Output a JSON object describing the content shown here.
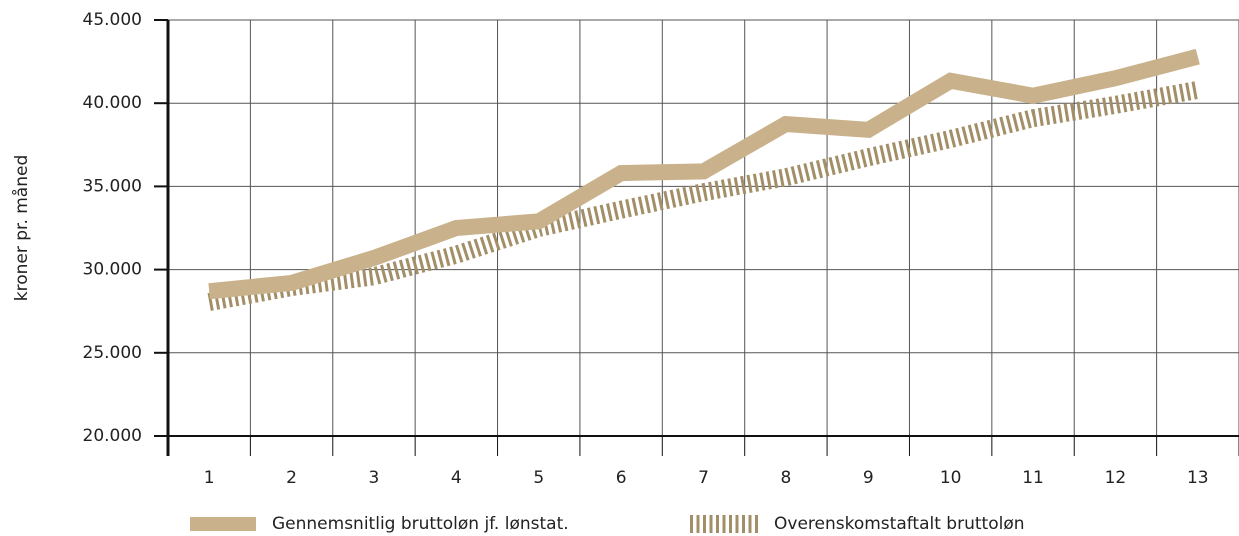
{
  "chart_data": {
    "type": "line",
    "ylabel": "kroner pr. måned",
    "categories": [
      "1",
      "2",
      "3",
      "4",
      "5",
      "6",
      "7",
      "8",
      "9",
      "10",
      "11",
      "12",
      "13"
    ],
    "series": [
      {
        "name": "Gennemsnitlig bruttoløn jf. lønstat.",
        "color": "#c9b28b",
        "style": "solid",
        "values": [
          28700,
          29200,
          30700,
          32500,
          32900,
          35800,
          35900,
          38750,
          38400,
          41350,
          40450,
          41500,
          42800
        ]
      },
      {
        "name": "Overenskomstaftalt bruttoløn",
        "color": "#a38f67",
        "style": "striped",
        "values": [
          28050,
          28950,
          29600,
          30900,
          32500,
          33600,
          34650,
          35550,
          36750,
          37850,
          39100,
          39900,
          40800
        ]
      }
    ],
    "ylim": [
      20000,
      45000
    ],
    "yticks": [
      {
        "value": 20000,
        "label": "20.000"
      },
      {
        "value": 25000,
        "label": "25.000"
      },
      {
        "value": 30000,
        "label": "30.000"
      },
      {
        "value": 35000,
        "label": "35.000"
      },
      {
        "value": 40000,
        "label": "40.000"
      },
      {
        "value": 45000,
        "label": "45.000"
      }
    ],
    "grid": true,
    "legend": "bottom"
  }
}
